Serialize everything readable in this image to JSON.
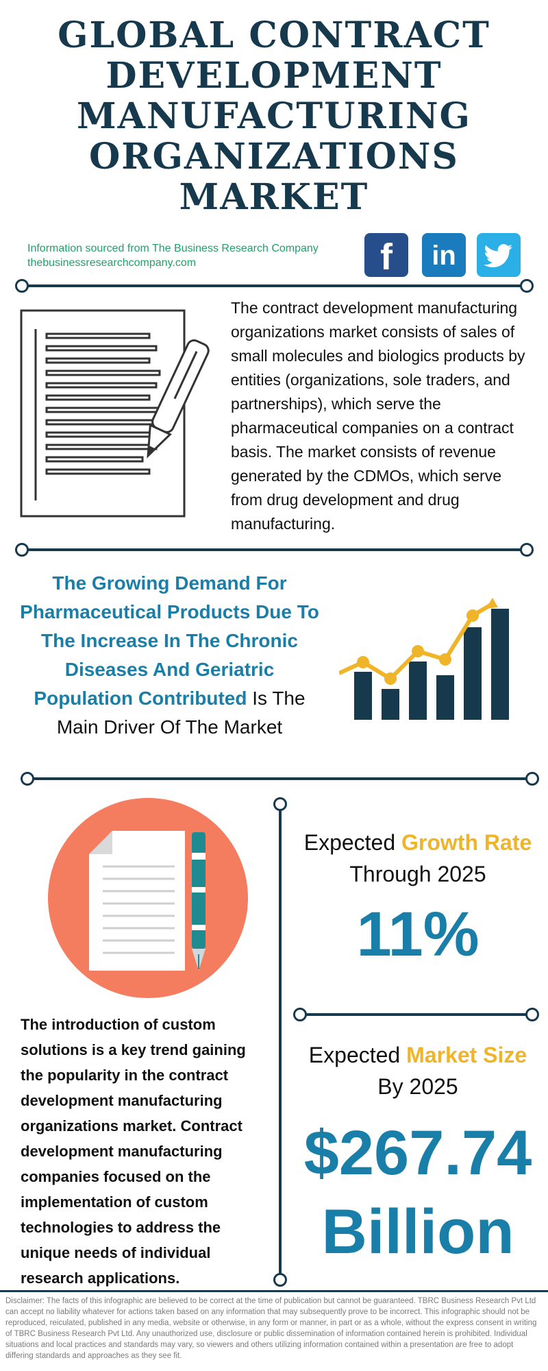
{
  "title": {
    "line1": "GLOBAL CONTRACT",
    "line2": "DEVELOPMENT",
    "line3": "MANUFACTURING",
    "line4": "ORGANIZATIONS",
    "line5": "MARKET"
  },
  "source": {
    "line1": "Information sourced from The Business Research Company",
    "line2": "thebusinessresearchcompany.com"
  },
  "social": {
    "facebook": "f",
    "linkedin": "in"
  },
  "description": "The contract development manufacturing organizations market consists of sales of small molecules and biologics products by entities (organizations, sole traders, and partnerships), which serve the pharmaceutical companies on a contract basis. The market consists of revenue generated by the CDMOs, which serve from drug development and drug manufacturing.",
  "driver": {
    "highlight": "The Growing Demand For Pharmaceutical Products Due To The Increase In The Chronic Diseases And Geriatric Population Contributed",
    "rest": " Is The Main Driver Of The Market"
  },
  "growth": {
    "prefix": "Expected ",
    "accent": "Growth Rate",
    "line2": "Through 2025",
    "value": "11%"
  },
  "market_size": {
    "prefix": "Expected ",
    "accent": "Market Size",
    "line2": "By 2025",
    "value_line1": "$267.74",
    "value_line2": "Billion"
  },
  "trend": "The introduction of custom solutions is a key trend gaining the popularity in the contract development manufacturing organizations market. Contract development manufacturing companies focused on the implementation of custom technologies to address the unique needs of individual research applications.",
  "disclaimer": "Disclaimer: The facts of this infographic are believed to be correct at the time of publication but cannot be guaranteed. TBRC Business Research Pvt Ltd can accept no liability whatever for actions taken based on any information that may subsequently prove to be incorrect. This infographic should not be reproduced, reiculated, published in any media, website or otherwise, in any form or manner, in part or as a whole, without the express consent in writing of TBRC Business Research Pvt Ltd. Any unauthorized use, disclosure or public dissemination of information contained herein is prohibited. Individual situations and local practices and standards may vary, so viewers and others utilizing information contained within a presentation are free to adopt differing standards and approaches as they see fit.",
  "colors": {
    "navy": "#17394d",
    "blue": "#1a7fa8",
    "gold": "#f0b429",
    "coral": "#f47c5f",
    "green_text": "#22a06b"
  },
  "icons": {
    "document_pencil": "document-pencil-icon",
    "bar_chart": "growth-bar-chart-icon",
    "document_pen": "document-pen-icon"
  }
}
